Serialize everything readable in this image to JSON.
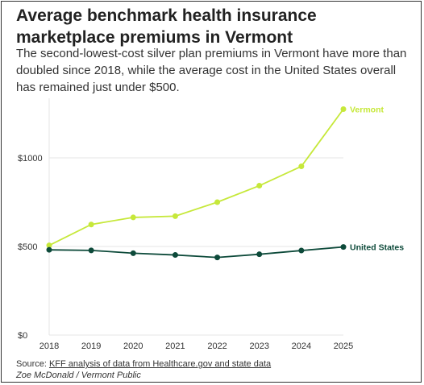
{
  "chart_data": {
    "type": "line",
    "title": "Average benchmark health insurance marketplace premiums in Vermont",
    "subtitle": "The second-lowest-cost silver plan premiums in Vermont have more than doubled since 2018, while the average cost in the United States overall has remained just under $500.",
    "x": [
      "2018",
      "2019",
      "2020",
      "2021",
      "2022",
      "2023",
      "2024",
      "2025"
    ],
    "series": [
      {
        "name": "Vermont",
        "color": "#c6e83a",
        "values": [
          506,
          624,
          664,
          671,
          750,
          843,
          952,
          1275
        ]
      },
      {
        "name": "United States",
        "color": "#0d4a3a",
        "values": [
          481,
          478,
          462,
          452,
          438,
          456,
          477,
          497
        ]
      }
    ],
    "ylim": [
      0,
      1300
    ],
    "yticks": [
      0,
      500,
      1000
    ],
    "ytick_labels": [
      "$0",
      "$500",
      "$1000"
    ],
    "grid": true,
    "xlabel": "",
    "ylabel": ""
  },
  "footer": {
    "source_prefix": "Source: ",
    "source_link": "KFF analysis of data from Healthcare.gov and state data",
    "credit": "Zoe McDonald / Vermont Public"
  }
}
